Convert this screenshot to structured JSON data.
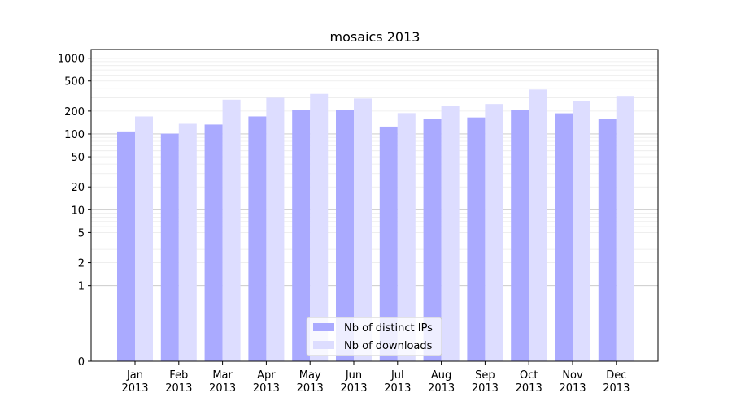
{
  "chart_data": {
    "type": "bar",
    "title": "mosaics 2013",
    "xlabel": "",
    "ylabel": "",
    "yscale": "symlog",
    "ylim": [
      0,
      1300
    ],
    "yticks": [
      0,
      1,
      2,
      5,
      10,
      20,
      50,
      100,
      200,
      500,
      1000
    ],
    "grid": "horizontal",
    "legend_position": "bottom-center",
    "categories": [
      [
        "Jan",
        "2013"
      ],
      [
        "Feb",
        "2013"
      ],
      [
        "Mar",
        "2013"
      ],
      [
        "Apr",
        "2013"
      ],
      [
        "May",
        "2013"
      ],
      [
        "Jun",
        "2013"
      ],
      [
        "Jul",
        "2013"
      ],
      [
        "Aug",
        "2013"
      ],
      [
        "Sep",
        "2013"
      ],
      [
        "Oct",
        "2013"
      ],
      [
        "Nov",
        "2013"
      ],
      [
        "Dec",
        "2013"
      ]
    ],
    "series": [
      {
        "name": "Nb of distinct IPs",
        "color": "#aaaaff",
        "values": [
          108,
          101,
          133,
          170,
          205,
          205,
          125,
          157,
          165,
          205,
          187,
          159
        ]
      },
      {
        "name": "Nb of downloads",
        "color": "#ddddff",
        "values": [
          170,
          136,
          283,
          300,
          337,
          293,
          188,
          234,
          248,
          385,
          273,
          317
        ]
      }
    ]
  }
}
